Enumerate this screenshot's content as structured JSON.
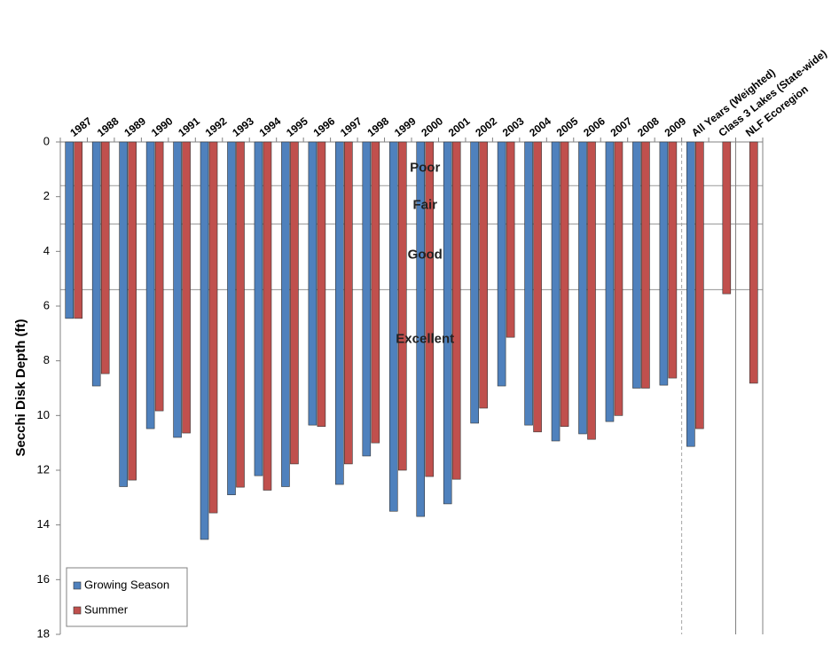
{
  "chart_data": {
    "type": "bar",
    "y_label": "Secchi Disk Depth (ft)",
    "categories": [
      "1987",
      "1988",
      "1989",
      "1990",
      "1991",
      "1992",
      "1993",
      "1994",
      "1995",
      "1996",
      "1997",
      "1998",
      "1999",
      "2000",
      "2001",
      "2002",
      "2003",
      "2004",
      "2005",
      "2006",
      "2007",
      "2008",
      "2009",
      "All Years (Weighted)",
      "Class 3 Lakes (State-wide)",
      "NLF Ecoregion"
    ],
    "series": [
      {
        "name": "Growing Season",
        "color": "#4f81bd",
        "values": [
          6.45,
          8.92,
          12.6,
          10.48,
          10.8,
          14.53,
          12.9,
          12.2,
          12.6,
          10.35,
          12.52,
          11.48,
          13.5,
          13.69,
          13.23,
          10.28,
          8.92,
          10.35,
          10.93,
          10.67,
          10.22,
          9.0,
          8.89,
          11.13,
          null,
          null
        ]
      },
      {
        "name": "Summer",
        "color": "#c0504d",
        "values": [
          6.45,
          8.47,
          12.36,
          9.83,
          10.64,
          13.56,
          12.62,
          12.73,
          11.77,
          10.4,
          11.77,
          11.0,
          12.0,
          12.23,
          12.33,
          9.73,
          7.14,
          10.6,
          10.4,
          10.87,
          10.0,
          9.0,
          8.63,
          10.48,
          5.55,
          8.82
        ]
      }
    ],
    "ylim": [
      0,
      18
    ],
    "y_inverted": true,
    "yticks": [
      0,
      2,
      4,
      6,
      8,
      10,
      12,
      14,
      16,
      18
    ],
    "reference_lines": [
      1.6,
      3.0,
      5.4
    ],
    "zone_labels": [
      "Poor",
      "Fair",
      "Good",
      "Excellent"
    ],
    "legend": "bottom-left"
  }
}
